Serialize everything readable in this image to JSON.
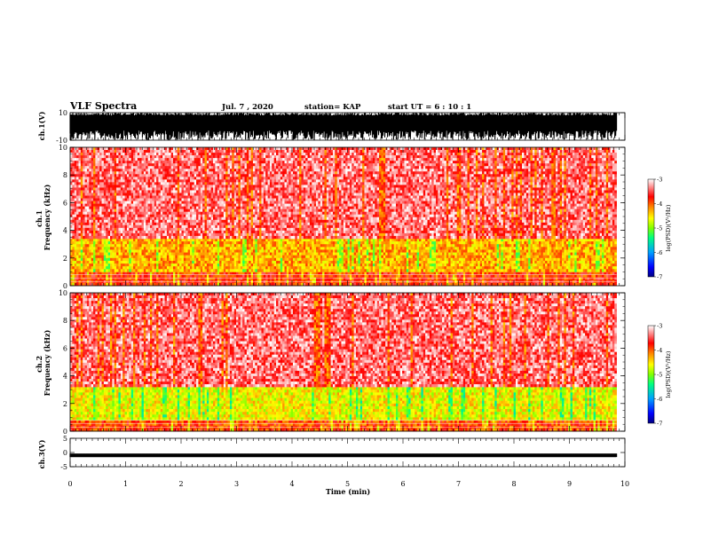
{
  "header": {
    "title": "VLF Spectra",
    "date": "Jul. 7 , 2020",
    "station": "station= KAP",
    "start": "start UT =  6 : 10 : 1"
  },
  "colors": {
    "colorbar_stops": [
      "#000080",
      "#0000ff",
      "#00a0ff",
      "#00ff80",
      "#80ff00",
      "#ffff00",
      "#ff8000",
      "#ff0000",
      "#ffffff"
    ]
  },
  "chart_data": [
    {
      "type": "line",
      "panel": "ch.1 waveform",
      "ylabel": "ch.1(V)",
      "ylim": [
        -10,
        10
      ],
      "yticks": [
        "10",
        "-10"
      ],
      "xlim": [
        0,
        10
      ],
      "description_values": {
        "amplitude_range_V": [
          -10,
          10
        ],
        "data_end_min": 9.85
      }
    },
    {
      "type": "heatmap",
      "panel": "ch.1 spectrogram",
      "ylabel": "ch.1\nFrequency (kHz)",
      "ylim": [
        0,
        10
      ],
      "yticks": [
        "0",
        "2",
        "4",
        "6",
        "8",
        "10"
      ],
      "xlim": [
        0,
        10
      ],
      "colorbar": {
        "label": "log(PSD)(V²/Hz)",
        "range": [
          -7,
          -3
        ],
        "ticks": [
          "-3",
          "-4",
          "-5",
          "-6",
          "-7"
        ]
      },
      "bands": [
        {
          "freq_kHz": [
            0.0,
            1.0
          ],
          "log_psd": -3.8
        },
        {
          "freq_kHz": [
            1.0,
            3.4
          ],
          "log_psd": -4.3
        },
        {
          "freq_kHz": [
            3.4,
            10.0
          ],
          "log_psd": -3.4
        }
      ]
    },
    {
      "type": "heatmap",
      "panel": "ch.2 spectrogram",
      "ylabel": "ch.2\nFrequency (kHz)",
      "ylim": [
        0,
        10
      ],
      "yticks": [
        "0",
        "2",
        "4",
        "6",
        "8",
        "10"
      ],
      "xlim": [
        0,
        10
      ],
      "colorbar": {
        "label": "log(PSD)(V²/Hz)",
        "range": [
          -7,
          -3
        ],
        "ticks": [
          "-3",
          "-4",
          "-5",
          "-6",
          "-7"
        ]
      },
      "bands": [
        {
          "freq_kHz": [
            0.0,
            0.8
          ],
          "log_psd": -3.9
        },
        {
          "freq_kHz": [
            0.8,
            3.2
          ],
          "log_psd": -4.6
        },
        {
          "freq_kHz": [
            3.2,
            10.0
          ],
          "log_psd": -3.4
        }
      ]
    },
    {
      "type": "line",
      "panel": "ch.3 waveform",
      "ylabel": "ch.3(V)",
      "ylim": [
        -5,
        5
      ],
      "yticks": [
        "5",
        "0",
        "-5"
      ],
      "xlim": [
        0,
        10
      ],
      "xlabel": "Time (min)",
      "xticks": [
        "0",
        "1",
        "2",
        "3",
        "4",
        "5",
        "6",
        "7",
        "8",
        "9",
        "10"
      ],
      "description_values": {
        "level_V": -1,
        "amplitude_V": 0.6,
        "data_end_min": 9.85
      }
    }
  ]
}
